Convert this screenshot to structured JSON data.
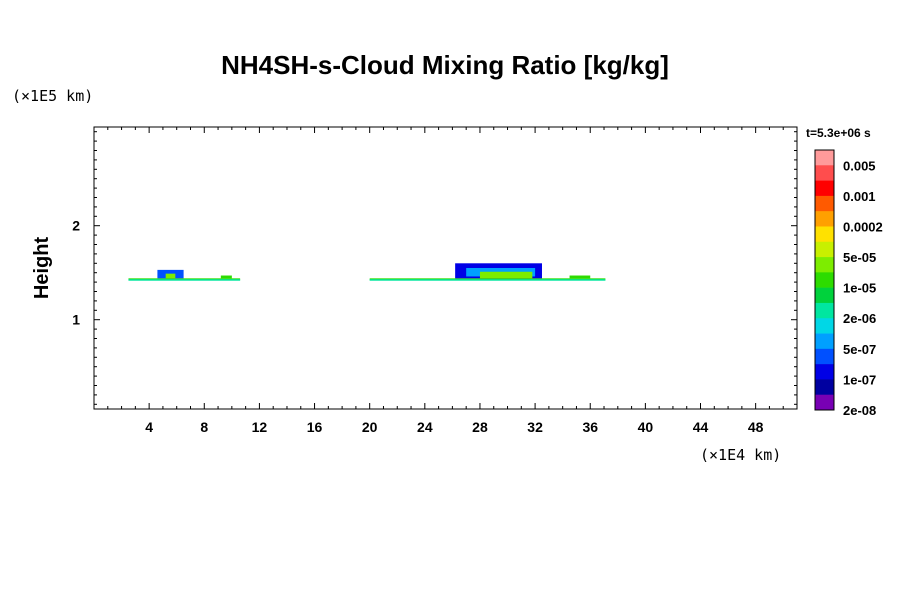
{
  "chart_data": {
    "type": "heatmap",
    "title": "NH4SH-s-Cloud Mixing Ratio [kg/kg]",
    "ylabel": "Height",
    "y_unit": "(×1E5 km)",
    "x_unit": "(×1E4 km)",
    "time_label": "t=5.3e+06 s",
    "xlim": [
      0,
      51
    ],
    "ylim": [
      0.05,
      3.05
    ],
    "x_ticks": [
      4,
      8,
      12,
      16,
      20,
      24,
      28,
      32,
      36,
      40,
      44,
      48
    ],
    "y_ticks": [
      1,
      2
    ],
    "colorbar": {
      "labels": [
        "0.005",
        "0.001",
        "0.0002",
        "5e-05",
        "1e-05",
        "2e-06",
        "5e-07",
        "1e-07",
        "2e-08"
      ],
      "colors": [
        "#ff9a9a",
        "#ff4d4d",
        "#ff0000",
        "#ff5a00",
        "#ffa000",
        "#ffe100",
        "#c8f000",
        "#7ded00",
        "#2ddc00",
        "#00d23c",
        "#00e6a0",
        "#00d7e6",
        "#00a0ff",
        "#0050ff",
        "#0000e6",
        "#0000a0",
        "#7800b4"
      ]
    },
    "cloud_regions": [
      {
        "x": [
          2.5,
          10.6
        ],
        "base": 1.42,
        "top": 1.44,
        "color": "#2ddc00",
        "note": "base layer"
      },
      {
        "x": [
          20.0,
          37.1
        ],
        "base": 1.42,
        "top": 1.44,
        "color": "#2ddc00",
        "note": "base layer"
      },
      {
        "x": [
          4.6,
          6.5
        ],
        "base": 1.44,
        "top": 1.53,
        "color": "#0050ff"
      },
      {
        "x": [
          5.2,
          5.9
        ],
        "base": 1.44,
        "top": 1.49,
        "color": "#7ded00"
      },
      {
        "x": [
          9.2,
          10.0
        ],
        "base": 1.44,
        "top": 1.47,
        "color": "#2ddc00"
      },
      {
        "x": [
          26.2,
          32.5
        ],
        "base": 1.44,
        "top": 1.6,
        "color": "#0000e6"
      },
      {
        "x": [
          27.0,
          32.0
        ],
        "base": 1.46,
        "top": 1.55,
        "color": "#00a0ff"
      },
      {
        "x": [
          28.0,
          31.8
        ],
        "base": 1.44,
        "top": 1.51,
        "color": "#7ded00"
      },
      {
        "x": [
          34.5,
          36.0
        ],
        "base": 1.44,
        "top": 1.47,
        "color": "#2ddc00"
      }
    ]
  }
}
